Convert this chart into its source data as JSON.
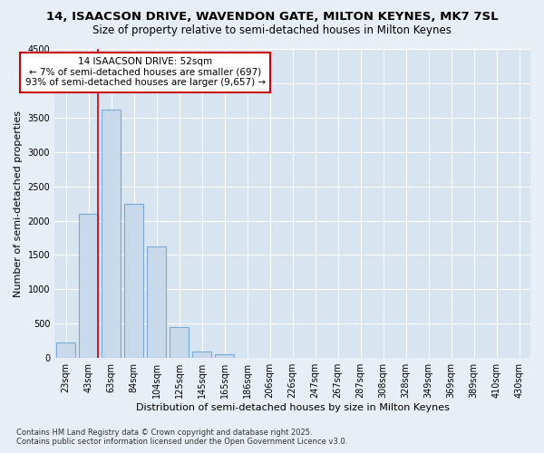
{
  "title_line1": "14, ISAACSON DRIVE, WAVENDON GATE, MILTON KEYNES, MK7 7SL",
  "title_line2": "Size of property relative to semi-detached houses in Milton Keynes",
  "xlabel": "Distribution of semi-detached houses by size in Milton Keynes",
  "ylabel": "Number of semi-detached properties",
  "footnote": "Contains HM Land Registry data © Crown copyright and database right 2025.\nContains public sector information licensed under the Open Government Licence v3.0.",
  "categories": [
    "23sqm",
    "43sqm",
    "63sqm",
    "84sqm",
    "104sqm",
    "125sqm",
    "145sqm",
    "165sqm",
    "186sqm",
    "206sqm",
    "226sqm",
    "247sqm",
    "267sqm",
    "287sqm",
    "308sqm",
    "328sqm",
    "349sqm",
    "369sqm",
    "389sqm",
    "410sqm",
    "430sqm"
  ],
  "values": [
    230,
    2100,
    3620,
    2250,
    1620,
    450,
    100,
    55,
    0,
    0,
    0,
    0,
    0,
    0,
    0,
    0,
    0,
    0,
    0,
    0,
    0
  ],
  "bar_color": "#c9d9ec",
  "bar_edge_color": "#7aaad4",
  "ylim": [
    0,
    4500
  ],
  "yticks": [
    0,
    500,
    1000,
    1500,
    2000,
    2500,
    3000,
    3500,
    4000,
    4500
  ],
  "vline_x_idx": 1,
  "vline_color": "#cc0000",
  "annotation_text": "14 ISAACSON DRIVE: 52sqm\n← 7% of semi-detached houses are smaller (697)\n93% of semi-detached houses are larger (9,657) →",
  "annotation_box_color": "#cc0000",
  "bg_color": "#e8eef5",
  "plot_bg_color": "#d8e4f0",
  "grid_color": "#ffffff",
  "title1_fontsize": 9.5,
  "title2_fontsize": 8.5,
  "xlabel_fontsize": 8,
  "ylabel_fontsize": 8,
  "tick_fontsize": 7,
  "annot_fontsize": 7.5,
  "footnote_fontsize": 6
}
